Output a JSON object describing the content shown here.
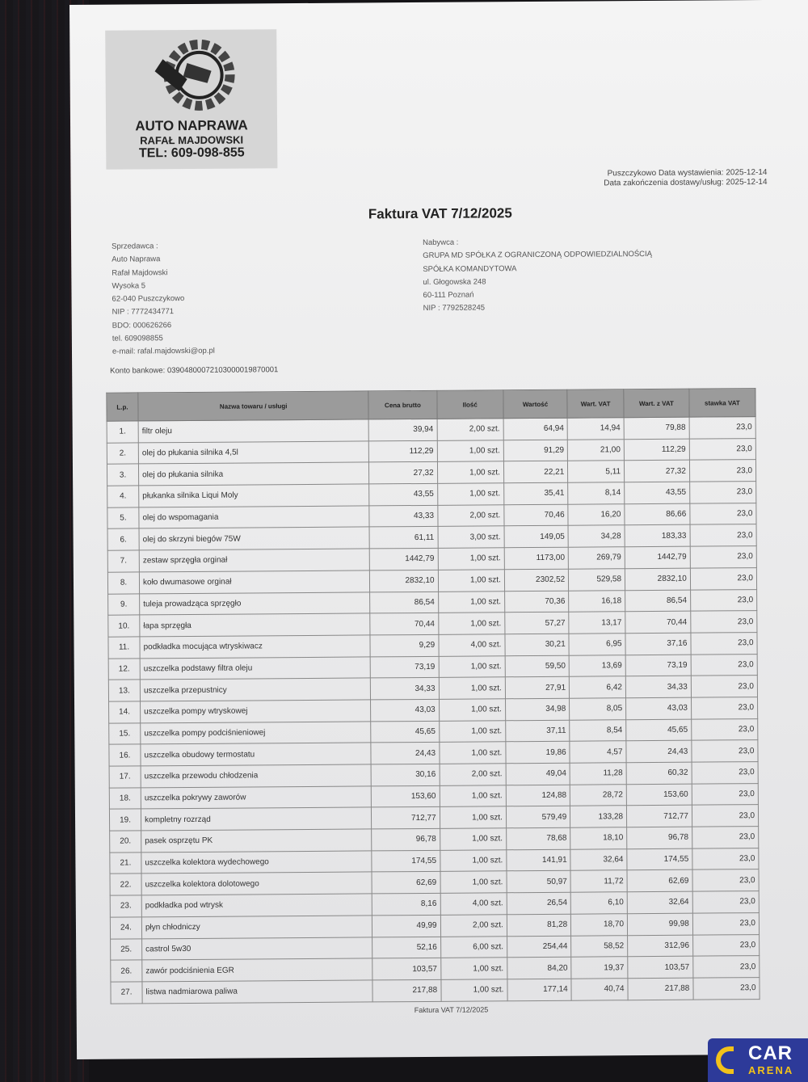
{
  "logo": {
    "name": "AUTO NAPRAWA",
    "owner": "RAFAŁ MAJDOWSKI",
    "phone": "TEL: 609-098-855"
  },
  "dates": {
    "issue": "Puszczykowo  Data wystawienia: 2025-12-14",
    "delivery": "Data zakończenia dostawy/usług: 2025-12-14"
  },
  "title": "Faktura VAT 7/12/2025",
  "seller": [
    "Sprzedawca :",
    "Auto Naprawa",
    "Rafał Majdowski",
    "Wysoka 5",
    "62-040 Puszczykowo",
    "NIP : 7772434771",
    "BDO: 000626266",
    "tel. 609098855",
    "e-mail: rafal.majdowski@op.pl"
  ],
  "buyer": [
    "Nabywca :",
    "GRUPA MD SPÓŁKA Z OGRANICZONĄ ODPOWIEDZIALNOŚCIĄ",
    "SPÓŁKA KOMANDYTOWA",
    "ul. Głogowska 248",
    "60-111 Poznań",
    "NIP : 7792528245"
  ],
  "konto": "Konto bankowe: 03904800072103000019870001",
  "table": {
    "headers": [
      "L.p.",
      "Nazwa towaru / usługi",
      "Cena brutto",
      "Ilość",
      "Wartość",
      "Wart. VAT",
      "Wart. z VAT",
      "stawka VAT"
    ],
    "rows": [
      [
        "1.",
        "filtr oleju",
        "39,94",
        "2,00 szt.",
        "64,94",
        "14,94",
        "79,88",
        "23,0"
      ],
      [
        "2.",
        "olej do płukania silnika 4,5l",
        "112,29",
        "1,00 szt.",
        "91,29",
        "21,00",
        "112,29",
        "23,0"
      ],
      [
        "3.",
        "olej do płukania silnika",
        "27,32",
        "1,00 szt.",
        "22,21",
        "5,11",
        "27,32",
        "23,0"
      ],
      [
        "4.",
        "płukanka silnika Liqui Moly",
        "43,55",
        "1,00 szt.",
        "35,41",
        "8,14",
        "43,55",
        "23,0"
      ],
      [
        "5.",
        "olej do wspomagania",
        "43,33",
        "2,00 szt.",
        "70,46",
        "16,20",
        "86,66",
        "23,0"
      ],
      [
        "6.",
        "olej do skrzyni biegów 75W",
        "61,11",
        "3,00 szt.",
        "149,05",
        "34,28",
        "183,33",
        "23,0"
      ],
      [
        "7.",
        "zestaw sprzęgła orginał",
        "1442,79",
        "1,00 szt.",
        "1173,00",
        "269,79",
        "1442,79",
        "23,0"
      ],
      [
        "8.",
        "koło dwumasowe orginał",
        "2832,10",
        "1,00 szt.",
        "2302,52",
        "529,58",
        "2832,10",
        "23,0"
      ],
      [
        "9.",
        "tuleja prowadząca sprzęgło",
        "86,54",
        "1,00 szt.",
        "70,36",
        "16,18",
        "86,54",
        "23,0"
      ],
      [
        "10.",
        "łapa sprzęgła",
        "70,44",
        "1,00 szt.",
        "57,27",
        "13,17",
        "70,44",
        "23,0"
      ],
      [
        "11.",
        "podkładka mocująca wtryskiwacz",
        "9,29",
        "4,00 szt.",
        "30,21",
        "6,95",
        "37,16",
        "23,0"
      ],
      [
        "12.",
        "uszczelka podstawy filtra oleju",
        "73,19",
        "1,00 szt.",
        "59,50",
        "13,69",
        "73,19",
        "23,0"
      ],
      [
        "13.",
        "uszczelka przepustnicy",
        "34,33",
        "1,00 szt.",
        "27,91",
        "6,42",
        "34,33",
        "23,0"
      ],
      [
        "14.",
        "uszczelka pompy wtryskowej",
        "43,03",
        "1,00 szt.",
        "34,98",
        "8,05",
        "43,03",
        "23,0"
      ],
      [
        "15.",
        "uszczelka pompy podciśnieniowej",
        "45,65",
        "1,00 szt.",
        "37,11",
        "8,54",
        "45,65",
        "23,0"
      ],
      [
        "16.",
        "uszczelka obudowy termostatu",
        "24,43",
        "1,00 szt.",
        "19,86",
        "4,57",
        "24,43",
        "23,0"
      ],
      [
        "17.",
        "uszczelka przewodu chłodzenia",
        "30,16",
        "2,00 szt.",
        "49,04",
        "11,28",
        "60,32",
        "23,0"
      ],
      [
        "18.",
        "uszczelka pokrywy zaworów",
        "153,60",
        "1,00 szt.",
        "124,88",
        "28,72",
        "153,60",
        "23,0"
      ],
      [
        "19.",
        "kompletny rozrząd",
        "712,77",
        "1,00 szt.",
        "579,49",
        "133,28",
        "712,77",
        "23,0"
      ],
      [
        "20.",
        "pasek osprzętu PK",
        "96,78",
        "1,00 szt.",
        "78,68",
        "18,10",
        "96,78",
        "23,0"
      ],
      [
        "21.",
        "uszczelka kolektora wydechowego",
        "174,55",
        "1,00 szt.",
        "141,91",
        "32,64",
        "174,55",
        "23,0"
      ],
      [
        "22.",
        "uszczelka kolektora dolotowego",
        "62,69",
        "1,00 szt.",
        "50,97",
        "11,72",
        "62,69",
        "23,0"
      ],
      [
        "23.",
        "podkładka pod wtrysk",
        "8,16",
        "4,00 szt.",
        "26,54",
        "6,10",
        "32,64",
        "23,0"
      ],
      [
        "24.",
        "płyn chłodniczy",
        "49,99",
        "2,00 szt.",
        "81,28",
        "18,70",
        "99,98",
        "23,0"
      ],
      [
        "25.",
        "castrol 5w30",
        "52,16",
        "6,00 szt.",
        "254,44",
        "58,52",
        "312,96",
        "23,0"
      ],
      [
        "26.",
        "zawór podciśnienia EGR",
        "103,57",
        "1,00 szt.",
        "84,20",
        "19,37",
        "103,57",
        "23,0"
      ],
      [
        "27.",
        "listwa nadmiarowa paliwa",
        "217,88",
        "1,00 szt.",
        "177,14",
        "40,74",
        "217,88",
        "23,0"
      ]
    ]
  },
  "footer": "Faktura VAT 7/12/2025",
  "badge": {
    "line1": "CAR",
    "line2": "ARENA"
  },
  "colors": {
    "badge_bg": "#2d3a99",
    "badge_accent": "#f2c21a",
    "table_header": "#9b9b9b"
  }
}
